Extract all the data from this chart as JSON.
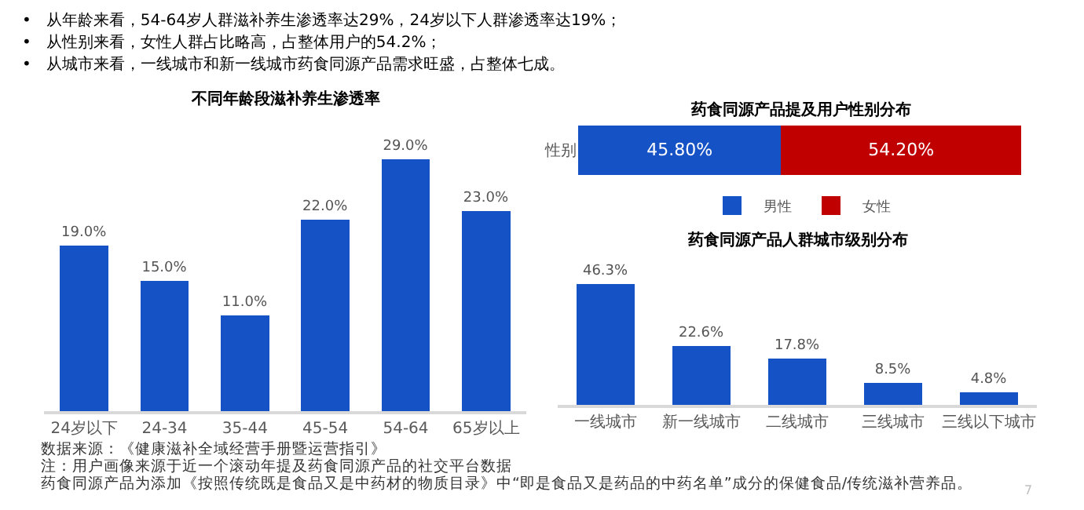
{
  "chart_data": [
    {
      "type": "bar",
      "title": "不同年龄段滋补养生渗透率",
      "categories": [
        "24岁以下",
        "24-34",
        "35-44",
        "45-54",
        "54-64",
        "65岁以上"
      ],
      "series": [
        {
          "color": "#1452c5",
          "values": [
            19.0,
            15.0,
            11.0,
            22.0,
            29.0,
            23.0
          ],
          "value_labels": [
            "19.0%",
            "15.0%",
            "11.0%",
            "22.0%",
            "29.0%",
            "23.0%"
          ]
        }
      ],
      "tick_labels": "x",
      "legend": false,
      "annotations": [
        "•   从年龄来看，54-64岁人群滋补养生渗透率达29%，24岁以下人群渗透率达19%；",
        "•   从性别来看，女性人群占比略高，占整体用户的54.2%；",
        "•   从城市来看，一线城市和新一线城市药食同源产品需求旺盛，占整体七成。",
        "数据来源：《健康滋补全域经营手册暨运营指引》",
        "注：用户画像来源于近一个滚动年提及药食同源产品的社交平台数据",
        "药食同源产品为添加《按照传统既是食品又是中药材的物质目录》中“即是食品又是药品的中药名单”成分的保健食品/传统滋补营养品。",
        "7"
      ]
    },
    {
      "type": "bar",
      "title": "药食同源产品提及用户性别分布",
      "orientation": "horizontal",
      "stacked": true,
      "categories": [
        "性别"
      ],
      "series": [
        {
          "name": "男性",
          "color": "#1452c5",
          "values": [
            45.8
          ],
          "value_labels": [
            "45.80%"
          ]
        },
        {
          "name": "女性",
          "color": "#c00000",
          "values": [
            54.2
          ],
          "value_labels": [
            "54.20%"
          ]
        }
      ],
      "tick_labels": "y",
      "legend": "bottom"
    },
    {
      "type": "bar",
      "title": "药食同源产品人群城市级别分布",
      "categories": [
        "一线城市",
        "新一线城市",
        "二线城市",
        "三线城市",
        "三线以下城市"
      ],
      "series": [
        {
          "color": "#1452c5",
          "values": [
            46.3,
            22.6,
            17.8,
            8.5,
            4.8
          ],
          "value_labels": [
            "46.3%",
            "22.6%",
            "17.8%",
            "8.5%",
            "4.8%"
          ]
        }
      ],
      "tick_labels": "x",
      "legend": false
    }
  ]
}
